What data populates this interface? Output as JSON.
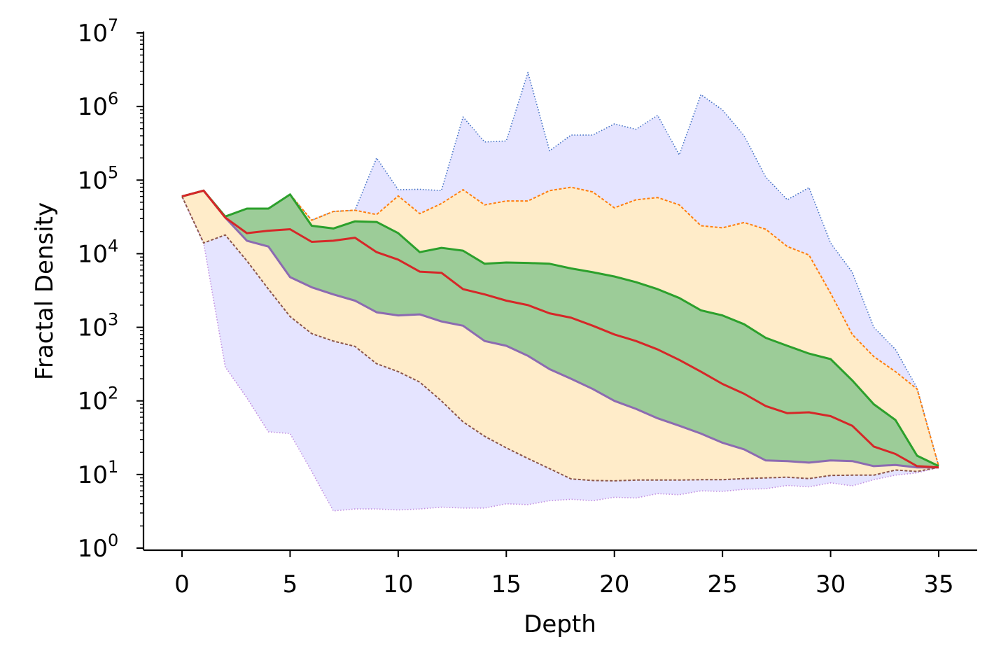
{
  "chart_data": {
    "type": "area",
    "title": "",
    "xlabel": "Depth",
    "ylabel": "Fractal Density",
    "xlim": [
      -1.8,
      36.8
    ],
    "ylim": [
      1,
      10000000
    ],
    "yscale": "log",
    "xticks": [
      0,
      5,
      10,
      15,
      20,
      25,
      30,
      35
    ],
    "yticks": [
      {
        "value": 1,
        "base": "10",
        "exp": "0"
      },
      {
        "value": 10,
        "base": "10",
        "exp": "1"
      },
      {
        "value": 100,
        "base": "10",
        "exp": "2"
      },
      {
        "value": 1000,
        "base": "10",
        "exp": "3"
      },
      {
        "value": 10000,
        "base": "10",
        "exp": "4"
      },
      {
        "value": 100000,
        "base": "10",
        "exp": "5"
      },
      {
        "value": 1000000,
        "base": "10",
        "exp": "6"
      },
      {
        "value": 10000000,
        "base": "10",
        "exp": "7"
      }
    ],
    "grid": false,
    "legend": "none",
    "x": [
      0,
      1,
      2,
      3,
      4,
      5,
      6,
      7,
      8,
      9,
      10,
      11,
      12,
      13,
      14,
      15,
      16,
      17,
      18,
      19,
      20,
      21,
      22,
      23,
      24,
      25,
      26,
      27,
      28,
      29,
      30,
      31,
      32,
      33,
      34,
      35
    ],
    "series": [
      {
        "role": "max",
        "color": "#4472c4",
        "dash": "dotted",
        "values": [
          60000,
          72000,
          32000,
          41000,
          41000,
          64000,
          28500,
          37500,
          39000,
          200000,
          74000,
          75000,
          72000,
          720000,
          330000,
          340000,
          2900000,
          250000,
          410000,
          410000,
          580000,
          490000,
          760000,
          220000,
          1450000,
          900000,
          400000,
          110000,
          54000,
          79000,
          14000,
          5600,
          1000,
          500,
          150,
          13
        ]
      },
      {
        "role": "p90",
        "color": "#ff7f0e",
        "dash": "dashed",
        "values": [
          60000,
          72000,
          32000,
          41000,
          41000,
          64000,
          28500,
          37500,
          39000,
          34000,
          61000,
          35000,
          48000,
          74000,
          46000,
          52000,
          52000,
          72000,
          80000,
          69000,
          42000,
          54000,
          58000,
          46000,
          24000,
          22500,
          26500,
          21500,
          12500,
          9600,
          2900,
          800,
          400,
          250,
          145,
          13
        ]
      },
      {
        "role": "p75",
        "color": "#2ca02c",
        "dash": "solid",
        "values": [
          60000,
          72000,
          32000,
          41000,
          41000,
          64000,
          24000,
          22000,
          27500,
          27000,
          19000,
          10500,
          12000,
          11000,
          7300,
          7600,
          7500,
          7300,
          6300,
          5600,
          4900,
          4100,
          3300,
          2500,
          1700,
          1450,
          1100,
          720,
          560,
          440,
          370,
          190,
          90,
          55,
          18,
          13
        ]
      },
      {
        "role": "median",
        "color": "#d62728",
        "dash": "solid",
        "values": [
          60000,
          72000,
          31000,
          19000,
          20500,
          21500,
          14500,
          15000,
          16500,
          10500,
          8300,
          5700,
          5500,
          3300,
          2800,
          2300,
          2000,
          1550,
          1350,
          1050,
          800,
          650,
          500,
          360,
          250,
          170,
          125,
          85,
          68,
          70,
          62,
          46,
          24,
          19,
          13,
          12.5
        ]
      },
      {
        "role": "p25",
        "color": "#8c6bb1",
        "dash": "solid",
        "values": [
          60000,
          72000,
          31000,
          15000,
          12500,
          4800,
          3500,
          2800,
          2300,
          1600,
          1450,
          1500,
          1200,
          1050,
          650,
          560,
          410,
          270,
          200,
          145,
          100,
          78,
          58,
          46,
          36,
          27,
          22,
          15.5,
          15.2,
          14.5,
          15.5,
          15.2,
          13,
          13.5,
          12.5,
          12.5
        ]
      },
      {
        "role": "p10",
        "color": "#8c564b",
        "dash": "dashed",
        "values": [
          60000,
          72000,
          31000,
          15000,
          12500,
          4800,
          3500,
          2800,
          2300,
          1600,
          1450,
          1500,
          1200,
          1050,
          650,
          560,
          410,
          270,
          200,
          145,
          100,
          78,
          58,
          46,
          36,
          27,
          22,
          15.5,
          15.2,
          14.5,
          15.5,
          15.2,
          13,
          13.5,
          12.5,
          12.5
        ],
        "values_own": [
          60000,
          14000,
          18000,
          8000,
          3300,
          1400,
          820,
          650,
          550,
          320,
          250,
          180,
          100,
          52,
          33,
          23,
          16.5,
          12,
          8.7,
          8.3,
          8.2,
          8.4,
          8.4,
          8.4,
          8.5,
          8.5,
          8.8,
          9,
          9.2,
          8.8,
          9.7,
          9.8,
          9.8,
          11.5,
          11,
          12.5
        ]
      },
      {
        "role": "min",
        "color": "#c28ee0",
        "dash": "dotted",
        "values": [
          60000,
          14000,
          290,
          110,
          38,
          36,
          11,
          3.2,
          3.4,
          3.4,
          3.3,
          3.4,
          3.6,
          3.5,
          3.5,
          4,
          3.9,
          4.4,
          4.6,
          4.4,
          4.9,
          4.8,
          5.5,
          5.3,
          6,
          5.9,
          6.3,
          6.4,
          7.1,
          6.8,
          7.7,
          7,
          8.5,
          9.8,
          10.5,
          12.5
        ]
      }
    ],
    "bands": [
      {
        "between": [
          "min",
          "max"
        ],
        "color": "#e5e4ff"
      },
      {
        "between": [
          "p10",
          "p90"
        ],
        "color": "#ffecc9"
      },
      {
        "between": [
          "p25",
          "p75"
        ],
        "color": "#9ccc98"
      }
    ]
  }
}
